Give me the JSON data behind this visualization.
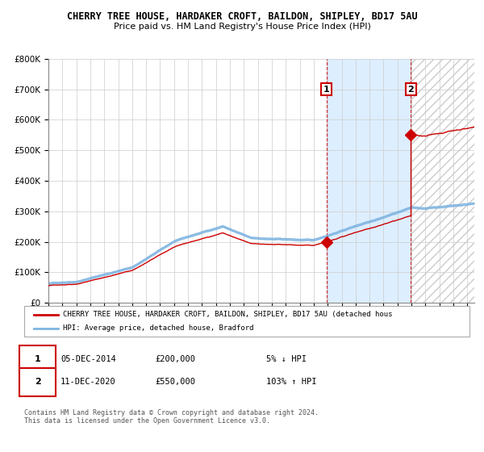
{
  "title": "CHERRY TREE HOUSE, HARDAKER CROFT, BAILDON, SHIPLEY, BD17 5AU",
  "subtitle": "Price paid vs. HM Land Registry's House Price Index (HPI)",
  "legend_line1": "CHERRY TREE HOUSE, HARDAKER CROFT, BAILDON, SHIPLEY, BD17 5AU (detached hous",
  "legend_line2": "HPI: Average price, detached house, Bradford",
  "annotation1_label": "1",
  "annotation1_date": "05-DEC-2014",
  "annotation1_price": "£200,000",
  "annotation1_hpi": "5% ↓ HPI",
  "annotation2_label": "2",
  "annotation2_date": "11-DEC-2020",
  "annotation2_price": "£550,000",
  "annotation2_hpi": "103% ↑ HPI",
  "footer": "Contains HM Land Registry data © Crown copyright and database right 2024.\nThis data is licensed under the Open Government Licence v3.0.",
  "ylim": [
    0,
    800000
  ],
  "yticks": [
    0,
    100000,
    200000,
    300000,
    400000,
    500000,
    600000,
    700000,
    800000
  ],
  "ytick_labels": [
    "£0",
    "£100K",
    "£200K",
    "£300K",
    "£400K",
    "£500K",
    "£600K",
    "£700K",
    "£800K"
  ],
  "hpi_color": "#7eb4e0",
  "price_color": "#cc0000",
  "sale1_x": 2014.92,
  "sale1_y": 200000,
  "sale2_x": 2020.95,
  "sale2_y": 550000,
  "background_color": "#ffffff",
  "shaded_region_color": "#ddeeff",
  "xlim_left": 1995,
  "xlim_right": 2025.5
}
